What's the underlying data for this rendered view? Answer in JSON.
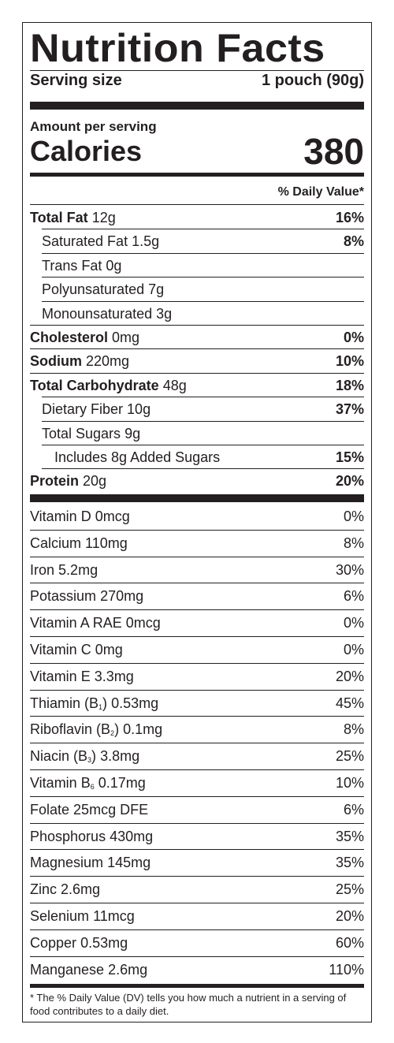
{
  "title": "Nutrition Facts",
  "serving": {
    "label": "Serving size",
    "value": "1 pouch (90g)"
  },
  "amount_per_serving": "Amount per serving",
  "calories": {
    "label": "Calories",
    "value": "380"
  },
  "daily_value_header": "% Daily Value*",
  "nutrients": [
    {
      "name": "Total Fat",
      "amount": "12g",
      "dv": "16%",
      "bold": true,
      "indent": 0
    },
    {
      "name": "Saturated Fat",
      "amount": "1.5g",
      "dv": "8%",
      "bold": false,
      "indent": 1
    },
    {
      "name": "Trans Fat",
      "amount": "0g",
      "dv": "",
      "bold": false,
      "indent": 1,
      "italic_name": true
    },
    {
      "name": "Polyunsaturated",
      "amount": "7g",
      "dv": "",
      "bold": false,
      "indent": 1
    },
    {
      "name": "Monounsaturated",
      "amount": "3g",
      "dv": "",
      "bold": false,
      "indent": 1
    },
    {
      "name": "Cholesterol",
      "amount": "0mg",
      "dv": "0%",
      "bold": true,
      "indent": 0
    },
    {
      "name": "Sodium",
      "amount": "220mg",
      "dv": "10%",
      "bold": true,
      "indent": 0
    },
    {
      "name": "Total Carbohydrate",
      "amount": "48g",
      "dv": "18%",
      "bold": true,
      "indent": 0
    },
    {
      "name": "Dietary Fiber",
      "amount": "10g",
      "dv": "37%",
      "bold": false,
      "indent": 1
    },
    {
      "name": "Total Sugars",
      "amount": "9g",
      "dv": "",
      "bold": false,
      "indent": 1
    },
    {
      "name": "Includes 8g Added Sugars",
      "amount": "",
      "dv": "15%",
      "bold": false,
      "indent": 2
    },
    {
      "name": "Protein",
      "amount": "20g",
      "dv": "20%",
      "bold": true,
      "indent": 0
    }
  ],
  "vitamins": [
    {
      "name": "Vitamin D",
      "sub": "",
      "after": "",
      "amount": "0mcg",
      "dv": "0%"
    },
    {
      "name": "Calcium",
      "sub": "",
      "after": "",
      "amount": "110mg",
      "dv": "8%"
    },
    {
      "name": "Iron",
      "sub": "",
      "after": "",
      "amount": "5.2mg",
      "dv": "30%"
    },
    {
      "name": "Potassium",
      "sub": "",
      "after": "",
      "amount": "270mg",
      "dv": "6%"
    },
    {
      "name": "Vitamin A RAE",
      "sub": "",
      "after": "",
      "amount": "0mcg",
      "dv": "0%"
    },
    {
      "name": "Vitamin C",
      "sub": "",
      "after": "",
      "amount": "0mg",
      "dv": "0%"
    },
    {
      "name": "Vitamin E",
      "sub": "",
      "after": "",
      "amount": "3.3mg",
      "dv": "20%"
    },
    {
      "name": "Thiamin (B",
      "sub": "1",
      "after": ")",
      "amount": "0.53mg",
      "dv": "45%"
    },
    {
      "name": "Riboflavin (B",
      "sub": "2",
      "after": ")",
      "amount": "0.1mg",
      "dv": "8%"
    },
    {
      "name": "Niacin (B",
      "sub": "3",
      "after": ")",
      "amount": "3.8mg",
      "dv": "25%"
    },
    {
      "name": "Vitamin B",
      "sub": "6",
      "after": "",
      "amount": "0.17mg",
      "dv": "10%"
    },
    {
      "name": "Folate",
      "sub": "",
      "after": "",
      "amount": "25mcg DFE",
      "dv": "6%"
    },
    {
      "name": "Phosphorus",
      "sub": "",
      "after": "",
      "amount": "430mg",
      "dv": "35%"
    },
    {
      "name": "Magnesium",
      "sub": "",
      "after": "",
      "amount": "145mg",
      "dv": "35%"
    },
    {
      "name": "Zinc",
      "sub": "",
      "after": "",
      "amount": "2.6mg",
      "dv": "25%"
    },
    {
      "name": "Selenium",
      "sub": "",
      "after": "",
      "amount": "11mcg",
      "dv": "20%"
    },
    {
      "name": "Copper",
      "sub": "",
      "after": "",
      "amount": "0.53mg",
      "dv": "60%"
    },
    {
      "name": "Manganese",
      "sub": "",
      "after": "",
      "amount": "2.6mg",
      "dv": "110%"
    }
  ],
  "footnote": "* The % Daily Value (DV) tells you how much a nutrient in a serving of food contributes to a daily diet."
}
